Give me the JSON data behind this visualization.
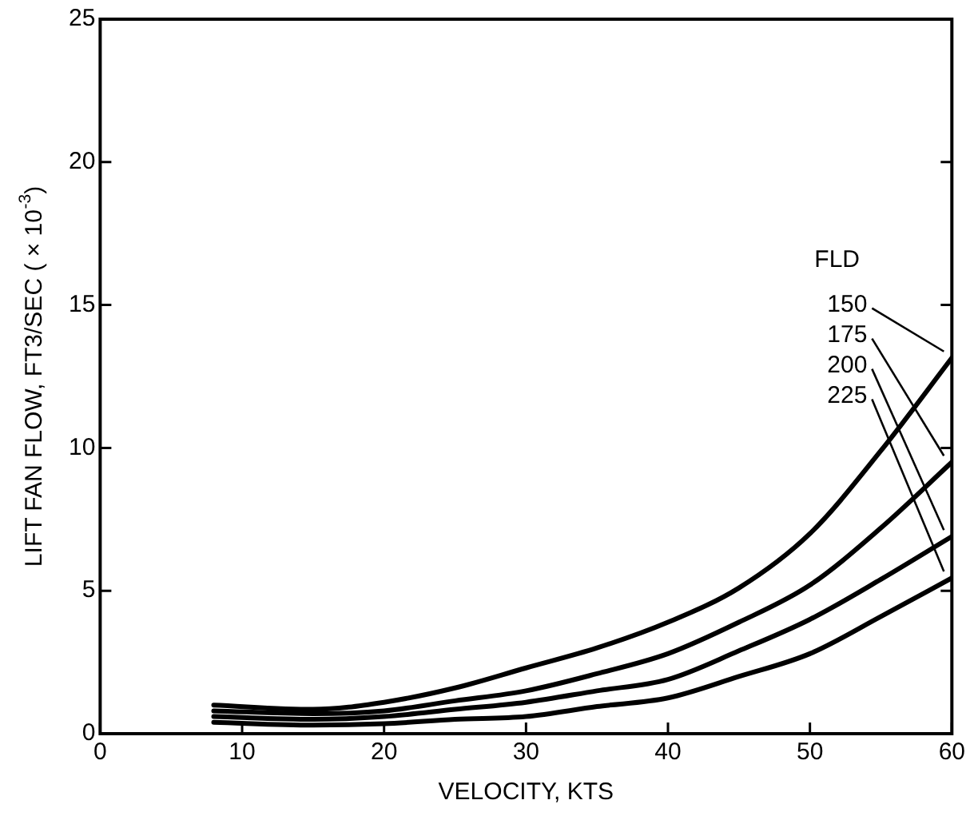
{
  "chart_data": {
    "type": "line",
    "xlabel": "VELOCITY, KTS",
    "ylabel": "LIFT FAN FLOW, FT3/SEC ( × 10$^{-3}$)",
    "legend_title": "FLD",
    "xlim": [
      0,
      60
    ],
    "ylim": [
      0,
      25
    ],
    "xticks": [
      0,
      10,
      20,
      30,
      40,
      50,
      60
    ],
    "yticks": [
      0,
      5,
      10,
      15,
      20,
      25
    ],
    "grid": false,
    "legend": "right",
    "marker": "none",
    "line_style": "solid",
    "x": [
      8,
      15,
      20,
      25,
      30,
      35,
      40,
      45,
      50,
      55,
      60
    ],
    "series": [
      {
        "name": "150",
        "color": "#000000",
        "values": [
          1.0,
          0.85,
          1.1,
          1.6,
          2.3,
          3.0,
          3.9,
          5.1,
          7.0,
          9.9,
          13.15
        ]
      },
      {
        "name": "175",
        "color": "#000000",
        "values": [
          0.8,
          0.7,
          0.8,
          1.15,
          1.5,
          2.1,
          2.8,
          3.9,
          5.2,
          7.2,
          9.5
        ]
      },
      {
        "name": "200",
        "color": "#000000",
        "values": [
          0.6,
          0.5,
          0.6,
          0.85,
          1.1,
          1.5,
          1.9,
          2.9,
          4.0,
          5.4,
          6.9
        ]
      },
      {
        "name": "225",
        "color": "#000000",
        "values": [
          0.4,
          0.3,
          0.35,
          0.5,
          0.6,
          0.95,
          1.25,
          2.0,
          2.8,
          4.1,
          5.45
        ]
      }
    ]
  }
}
